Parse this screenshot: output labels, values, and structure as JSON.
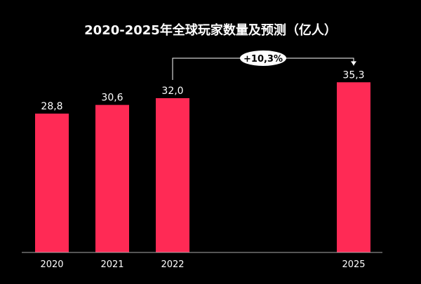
{
  "chart_data": {
    "type": "bar",
    "title": "2020-2025年全球玩家数量及预测（亿人）",
    "categories": [
      "2020",
      "2021",
      "2022",
      "2025"
    ],
    "values": [
      28.8,
      30.6,
      32.0,
      35.3
    ],
    "data_labels": [
      "28,8",
      "30,6",
      "32,0",
      "35,3"
    ],
    "xlabel": "",
    "ylabel": "",
    "ylim": [
      0,
      36
    ],
    "x_range": [
      2020,
      2025
    ],
    "grid": false,
    "bar_color": "#ff2a55",
    "background": "#000000",
    "annotation": {
      "label": "+10,3%",
      "from": "2022",
      "to": "2025"
    }
  }
}
